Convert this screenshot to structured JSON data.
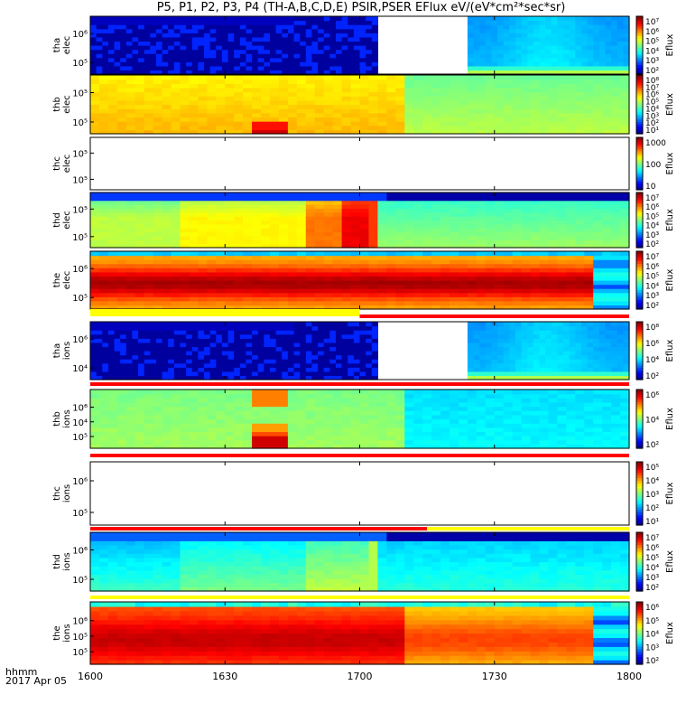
{
  "title": "P5, P1, P2, P3, P4 (TH-A,B,C,D,E) PSIR,PSER EFlux eV/(eV*cm²*sec*sr)",
  "time_axis": {
    "ticks": [
      "1600",
      "1630",
      "1700",
      "1730",
      "1800"
    ],
    "corner_label": "hhmm",
    "date_label": "2017 Apr 05"
  },
  "colors": {
    "frame": "#000000",
    "line_red": "#ff0000",
    "line_yellow": "#ffff00"
  },
  "chart_data": {
    "type": "heatmap",
    "x_range_minutes_after_1600": [
      0,
      120
    ],
    "panels": [
      {
        "name": "tha elec",
        "label": [
          "tha",
          "elec"
        ],
        "yticks": [
          "10⁶",
          "10⁵"
        ],
        "cbar_label": "Eflux",
        "cbar_ticks": [
          "10⁷",
          "10⁶",
          "10⁵",
          "10⁴",
          "10³",
          "10²"
        ],
        "pattern": "sparse-then-gap-then-blue"
      },
      {
        "name": "thb elec",
        "label": [
          "thb",
          "elec"
        ],
        "yticks": [
          "10⁵",
          "10⁵"
        ],
        "cbar_label": "Eflux",
        "cbar_ticks": [
          "10⁸",
          "10⁷",
          "10⁶",
          "10⁵",
          "10⁴",
          "10³",
          "10²",
          "10¹"
        ],
        "pattern": "yellow-then-green"
      },
      {
        "name": "thc elec",
        "label": [
          "thc",
          "elec"
        ],
        "yticks": [
          "10⁵",
          "10⁵"
        ],
        "cbar_label": "Eflux",
        "cbar_ticks": [
          "1000",
          "100",
          "10"
        ],
        "pattern": "empty"
      },
      {
        "name": "thd elec",
        "label": [
          "thd",
          "elec"
        ],
        "yticks": [
          "10⁵",
          "10⁵"
        ],
        "cbar_label": "Eflux",
        "cbar_ticks": [
          "10⁷",
          "10⁶",
          "10⁵",
          "10⁴",
          "10³",
          "10²"
        ],
        "pattern": "green-orange-then-green"
      },
      {
        "name": "the elec",
        "label": [
          "the",
          "elec"
        ],
        "yticks": [
          "10⁶",
          "10⁵"
        ],
        "cbar_label": "Eflux",
        "cbar_ticks": [
          "10⁷",
          "10⁶",
          "10⁵",
          "10⁴",
          "10³",
          "10²"
        ],
        "pattern": "red-band"
      },
      {
        "name": "tha ions",
        "label": [
          "tha",
          "ions"
        ],
        "yticks": [
          "10⁶",
          "10⁴"
        ],
        "cbar_label": "Eflux",
        "cbar_ticks": [
          "10⁸",
          "10⁶",
          "10⁴",
          "10²"
        ],
        "pattern": "sparse-then-gap-then-blue"
      },
      {
        "name": "thb ions",
        "label": [
          "thb",
          "ions"
        ],
        "yticks": [
          "10⁶",
          "10⁴",
          "10⁵"
        ],
        "cbar_label": "Eflux",
        "cbar_ticks": [
          "10⁶",
          "10⁴",
          "10²"
        ],
        "pattern": "green-then-blue"
      },
      {
        "name": "thc ions",
        "label": [
          "thc",
          "ions"
        ],
        "yticks": [
          "10⁶",
          "10⁵"
        ],
        "cbar_label": "Eflux",
        "cbar_ticks": [
          "10⁵",
          "10⁴",
          "10³",
          "10²",
          "10¹"
        ],
        "pattern": "empty"
      },
      {
        "name": "thd ions",
        "label": [
          "thd",
          "ions"
        ],
        "yticks": [
          "10⁶",
          "10⁵"
        ],
        "cbar_label": "Eflux",
        "cbar_ticks": [
          "10⁷",
          "10⁶",
          "10⁵",
          "10⁴",
          "10³",
          "10²"
        ],
        "pattern": "blue-green-then-cyan"
      },
      {
        "name": "the ions",
        "label": [
          "the",
          "ions"
        ],
        "yticks": [
          "10⁶",
          "10⁵",
          "10⁵"
        ],
        "cbar_label": "Eflux",
        "cbar_ticks": [
          "10⁶",
          "10⁵",
          "10⁴",
          "10³",
          "10²"
        ],
        "pattern": "red-orange-band"
      }
    ]
  }
}
